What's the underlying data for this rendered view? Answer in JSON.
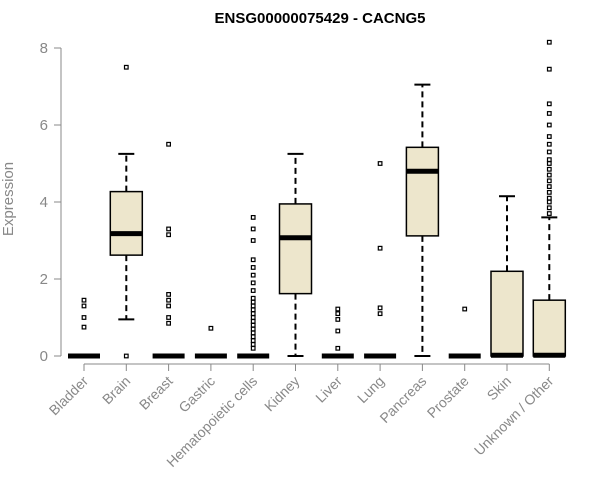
{
  "chart_data": {
    "type": "boxplot",
    "title": "ENSG00000075429 - CACNG5",
    "xlabel": "",
    "ylabel": "Expression",
    "ylim": [
      0,
      8.2
    ],
    "yticks": [
      0,
      2,
      4,
      6,
      8
    ],
    "box_fill": "#ede6cc",
    "stroke_color": "#000000",
    "axis_color": "#888888",
    "categories": [
      "Bladder",
      "Brain",
      "Breast",
      "Gastric",
      "Hematopoietic cells",
      "Kidney",
      "Liver",
      "Lung",
      "Pancreas",
      "Prostate",
      "Skin",
      "Unknown / Other"
    ],
    "boxes": [
      {
        "q1": 0,
        "median": 0,
        "q3": 0,
        "whisker_low": 0,
        "whisker_high": 0,
        "outliers": [
          0.75,
          1.0,
          1.3,
          1.45
        ]
      },
      {
        "q1": 2.62,
        "median": 3.18,
        "q3": 4.27,
        "whisker_low": 0.95,
        "whisker_high": 5.25,
        "outliers": [
          0.0,
          7.5
        ]
      },
      {
        "q1": 0,
        "median": 0,
        "q3": 0,
        "whisker_low": 0,
        "whisker_high": 0,
        "outliers": [
          0.85,
          1.0,
          1.3,
          1.45,
          1.6,
          3.15,
          3.3,
          5.5
        ]
      },
      {
        "q1": 0,
        "median": 0,
        "q3": 0,
        "whisker_low": 0,
        "whisker_high": 0,
        "outliers": [
          0.72
        ]
      },
      {
        "q1": 0,
        "median": 0,
        "q3": 0,
        "whisker_low": 0,
        "whisker_high": 0,
        "outliers": [
          0.2,
          0.3,
          0.4,
          0.5,
          0.6,
          0.7,
          0.8,
          0.9,
          1.0,
          1.1,
          1.2,
          1.3,
          1.4,
          1.5,
          1.7,
          1.9,
          2.1,
          2.3,
          2.5,
          3.0,
          3.3,
          3.6
        ]
      },
      {
        "q1": 1.62,
        "median": 3.07,
        "q3": 3.95,
        "whisker_low": 0,
        "whisker_high": 5.25,
        "outliers": []
      },
      {
        "q1": 0,
        "median": 0,
        "q3": 0,
        "whisker_low": 0,
        "whisker_high": 0,
        "outliers": [
          0.2,
          0.65,
          0.95,
          1.1,
          1.22
        ]
      },
      {
        "q1": 0,
        "median": 0,
        "q3": 0,
        "whisker_low": 0,
        "whisker_high": 0,
        "outliers": [
          1.1,
          1.25,
          2.8,
          5.0
        ]
      },
      {
        "q1": 3.12,
        "median": 4.8,
        "q3": 5.42,
        "whisker_low": 0,
        "whisker_high": 7.05,
        "outliers": []
      },
      {
        "q1": 0,
        "median": 0,
        "q3": 0,
        "whisker_low": 0,
        "whisker_high": 0,
        "outliers": [
          1.22
        ]
      },
      {
        "q1": 0,
        "median": 0.02,
        "q3": 2.2,
        "whisker_low": 0,
        "whisker_high": 4.15,
        "outliers": []
      },
      {
        "q1": 0,
        "median": 0.02,
        "q3": 1.45,
        "whisker_low": 0,
        "whisker_high": 3.6,
        "outliers": [
          3.7,
          3.85,
          4.0,
          4.1,
          4.25,
          4.4,
          4.55,
          4.7,
          4.85,
          5.0,
          5.1,
          5.3,
          5.5,
          5.7,
          6.0,
          6.3,
          6.55,
          7.45,
          8.15
        ]
      }
    ]
  }
}
